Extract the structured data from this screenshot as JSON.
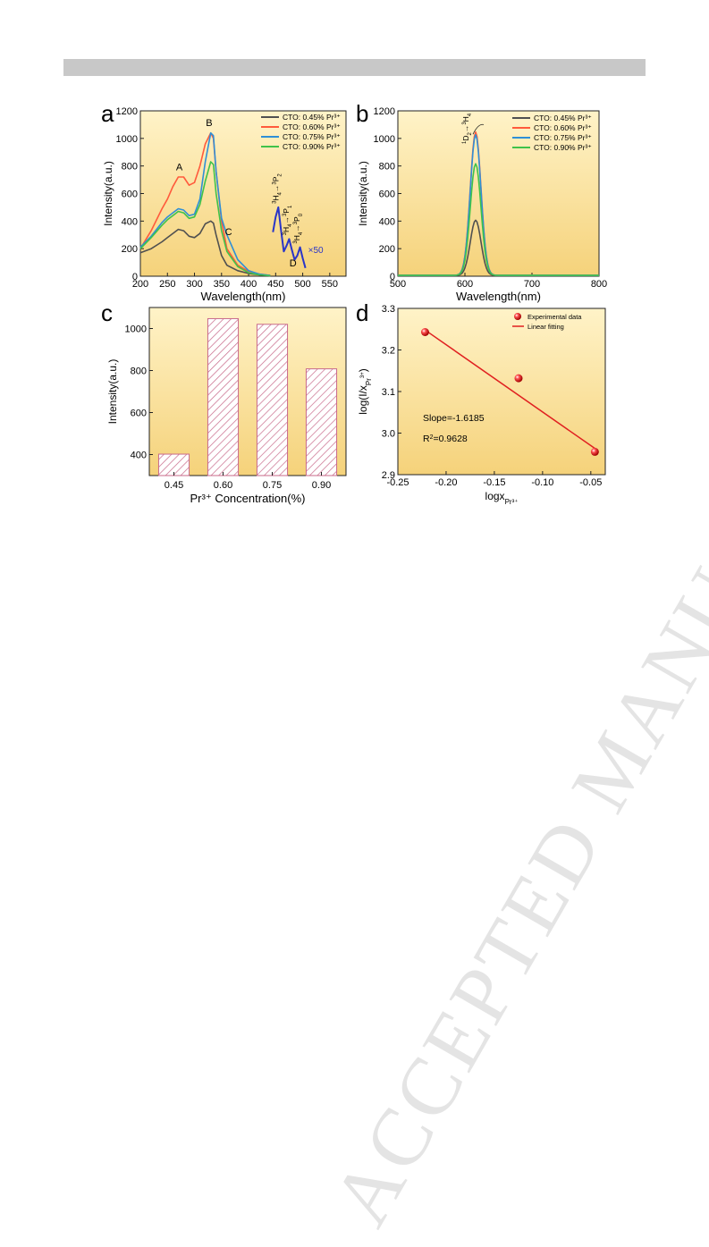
{
  "header_bar": {
    "color": "#c8c8c8"
  },
  "watermark": {
    "text": "ACCEPTED MANUSCRIPT",
    "color": "#e4e4e4"
  },
  "colors": {
    "s045": "#505050",
    "s060": "#ff5a3c",
    "s075": "#2f8fd6",
    "s090": "#3fc24a",
    "inset": "#2a35c8",
    "bar_fill": "#ffffff",
    "bar_hatch": "#c86a8a",
    "fit_line": "#e02020",
    "point": "#d81818",
    "bg_top": "#fff3c8",
    "bg_bottom": "#f5d27a"
  },
  "chart_data": [
    {
      "panel_label": "a",
      "type": "line",
      "xlabel": "Wavelength(nm)",
      "ylabel": "Intensity(a.u.)",
      "xlim": [
        200,
        580
      ],
      "ylim": [
        0,
        1200
      ],
      "xticks": [
        200,
        250,
        300,
        350,
        400,
        450,
        500,
        550
      ],
      "yticks": [
        0,
        200,
        400,
        600,
        800,
        1000,
        1200
      ],
      "legend_position": "top-right",
      "series": [
        {
          "name": "CTO: 0.45% Pr³⁺",
          "color_key": "s045",
          "x": [
            200,
            220,
            240,
            250,
            260,
            270,
            280,
            290,
            300,
            310,
            320,
            330,
            335,
            340,
            350,
            360,
            380,
            400,
            420,
            440
          ],
          "y": [
            170,
            200,
            250,
            280,
            310,
            340,
            330,
            290,
            280,
            310,
            380,
            400,
            385,
            300,
            150,
            80,
            40,
            20,
            10,
            5
          ]
        },
        {
          "name": "CTO: 0.60% Pr³⁺",
          "color_key": "s060",
          "x": [
            200,
            220,
            240,
            250,
            260,
            270,
            280,
            290,
            300,
            310,
            320,
            330,
            335,
            340,
            350,
            360,
            380,
            400,
            420,
            440
          ],
          "y": [
            200,
            330,
            490,
            560,
            650,
            720,
            720,
            660,
            680,
            800,
            960,
            1040,
            1000,
            760,
            400,
            200,
            80,
            35,
            15,
            5
          ]
        },
        {
          "name": "CTO: 0.75% Pr³⁺",
          "color_key": "s075",
          "x": [
            200,
            220,
            240,
            250,
            260,
            270,
            280,
            290,
            300,
            310,
            320,
            330,
            335,
            340,
            350,
            360,
            380,
            400,
            420,
            440
          ],
          "y": [
            210,
            290,
            390,
            430,
            460,
            490,
            480,
            440,
            450,
            560,
            830,
            1040,
            1020,
            760,
            420,
            300,
            120,
            40,
            15,
            5
          ]
        },
        {
          "name": "CTO: 0.90% Pr³⁺",
          "color_key": "s090",
          "x": [
            200,
            220,
            240,
            250,
            260,
            270,
            280,
            290,
            300,
            310,
            320,
            330,
            335,
            340,
            350,
            360,
            380,
            400,
            420,
            440
          ],
          "y": [
            200,
            280,
            370,
            410,
            440,
            470,
            460,
            420,
            430,
            520,
            690,
            830,
            810,
            600,
            330,
            180,
            70,
            25,
            10,
            3
          ]
        }
      ],
      "inset_series": {
        "color_key": "inset",
        "x": [
          445,
          450,
          455,
          460,
          465,
          470,
          475,
          480,
          485,
          490,
          495,
          500,
          505
        ],
        "y": [
          320,
          430,
          500,
          330,
          180,
          220,
          270,
          190,
          120,
          150,
          210,
          130,
          60
        ]
      },
      "point_labels": [
        {
          "text": "A",
          "x": 272,
          "y": 770
        },
        {
          "text": "B",
          "x": 327,
          "y": 1090
        },
        {
          "text": "C",
          "x": 363,
          "y": 300
        },
        {
          "text": "D",
          "x": 482,
          "y": 70
        }
      ],
      "annotations": {
        "t1": {
          "base": "H",
          "sup_a": "3",
          "sub_a": "4",
          "arrow": "→",
          "sup_b": "3",
          "base_b": "P",
          "sub_b": "2"
        },
        "t2": {
          "base": "H",
          "sup_a": "3",
          "sub_a": "4",
          "arrow": "→",
          "sup_b": "3",
          "base_b": "P",
          "sub_b": "1"
        },
        "t3": {
          "base": "H",
          "sup_a": "3",
          "sub_a": "4",
          "arrow": "→",
          "sup_b": "3",
          "base_b": "P",
          "sub_b": "0"
        },
        "scale": "×50"
      }
    },
    {
      "panel_label": "b",
      "type": "line",
      "xlabel": "Wavelength(nm)",
      "ylabel": "Intensity(a.u.)",
      "xlim": [
        500,
        800
      ],
      "ylim": [
        0,
        1200
      ],
      "xticks": [
        500,
        600,
        700,
        800
      ],
      "yticks": [
        0,
        200,
        400,
        600,
        800,
        1000,
        1200
      ],
      "legend_position": "top-right",
      "series": [
        {
          "name": "CTO: 0.45% Pr³⁺",
          "color_key": "s045",
          "peak": 400,
          "center": 616,
          "width": 8
        },
        {
          "name": "CTO: 0.60% Pr³⁺",
          "color_key": "s060",
          "peak": 1040,
          "center": 616,
          "width": 8
        },
        {
          "name": "CTO: 0.75% Pr³⁺",
          "color_key": "s075",
          "peak": 1020,
          "center": 616,
          "width": 8
        },
        {
          "name": "CTO: 0.90% Pr³⁺",
          "color_key": "s090",
          "peak": 810,
          "center": 616,
          "width": 8
        }
      ],
      "annotation": {
        "sup_a": "1",
        "base": "D",
        "sub_a": "2",
        "arrow": "→",
        "sup_b": "3",
        "base_b": "H",
        "sub_b": "4"
      }
    },
    {
      "panel_label": "c",
      "type": "bar",
      "xlabel": "Pr³⁺ Concentration(%)",
      "ylabel": "Intensity(a.u.)",
      "categories": [
        "0.45",
        "0.60",
        "0.75",
        "0.90"
      ],
      "values": [
        402,
        1047,
        1020,
        808
      ],
      "ylim": [
        300,
        1100
      ],
      "yticks": [
        400,
        600,
        800,
        1000
      ]
    },
    {
      "panel_label": "d",
      "type": "scatter",
      "xlabel": "logx",
      "xlabel_sub": "Pr³⁺",
      "ylabel_parts": {
        "a": "log(I/x",
        "sub": "Pr",
        "sup": "3+",
        "b": ")"
      },
      "xlim": [
        -0.25,
        -0.035
      ],
      "ylim": [
        2.9,
        3.3
      ],
      "xticks": [
        -0.25,
        -0.2,
        -0.15,
        -0.1,
        -0.05
      ],
      "xtick_labels": [
        "-0.25",
        "-0.20",
        "-0.15",
        "-0.10",
        "-0.05"
      ],
      "yticks": [
        2.9,
        3.0,
        3.1,
        3.2,
        3.3
      ],
      "ytick_labels": [
        "2.9",
        "3.0",
        "3.1",
        "3.2",
        "3.3"
      ],
      "points": {
        "x": [
          -0.2218,
          -0.1249,
          -0.0458
        ],
        "y": [
          3.243,
          3.132,
          2.955
        ]
      },
      "fit": {
        "slope": -1.6185,
        "intercept": 2.889,
        "x_range": [
          -0.2218,
          -0.0458
        ]
      },
      "legend": {
        "points": "Experimental data",
        "line": "Linear fitting"
      },
      "slope_text": "Slope=-1.6185",
      "r2": {
        "label": "R",
        "sup": "2",
        "value": "=0.9628"
      }
    }
  ]
}
